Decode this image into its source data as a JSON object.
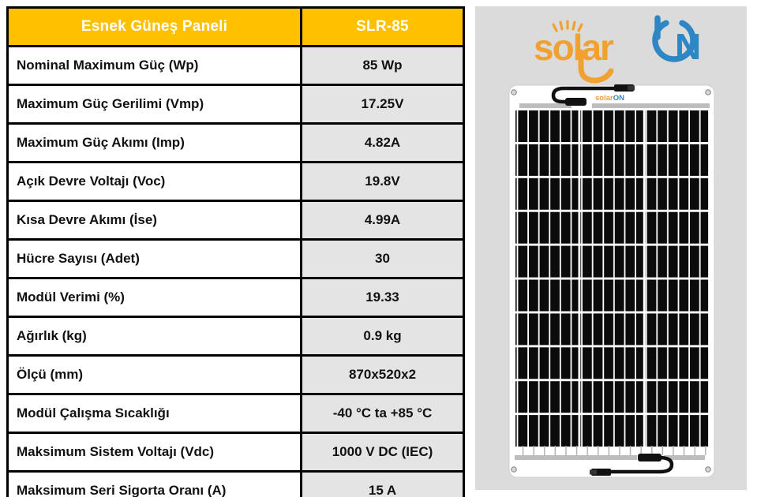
{
  "spec_table": {
    "header": {
      "product_type": "Esnek Güneş Paneli",
      "model": "SLR-85"
    },
    "rows": [
      {
        "label": "Nominal Maximum Güç (Wp)",
        "value": "85 Wp"
      },
      {
        "label": "Maximum Güç Gerilimi (Vmp)",
        "value": "17.25V"
      },
      {
        "label": "Maximum Güç Akımı (Imp)",
        "value": "4.82A"
      },
      {
        "label": "Açık Devre Voltajı (Voc)",
        "value": "19.8V"
      },
      {
        "label": "Kısa Devre Akımı (İse)",
        "value": "4.99A"
      },
      {
        "label": "Hücre Sayısı (Adet)",
        "value": "30"
      },
      {
        "label": "Modül Verimi (%)",
        "value": "19.33"
      },
      {
        "label": "Ağırlık (kg)",
        "value": "0.9 kg"
      },
      {
        "label": "Ölçü (mm)",
        "value": "870x520x2"
      },
      {
        "label": "Modül Çalışma Sıcaklığı",
        "value": "-40 °C ta +85 °C"
      },
      {
        "label": "Maksimum Sistem Voltajı (Vdc)",
        "value": "1000 V DC (IEC)"
      },
      {
        "label": "Maksimum Seri Sigorta Oranı (A)",
        "value": "15 A"
      }
    ],
    "colors": {
      "header_bg": "#FFC000",
      "header_text": "#FFFFFF",
      "value_bg": "#E5E4E4",
      "border": "#000000"
    }
  },
  "brand_logo": {
    "word_solar": "solar",
    "word_n": "N"
  },
  "product_image": {
    "mini_logo_solar": "solar",
    "mini_logo_on": "ON",
    "cell_grid": {
      "rows": 10,
      "columns": 3
    },
    "colors": {
      "box_bg": "#DBDBDB",
      "panel_bg": "#FFFFFF",
      "cell_black": "#0B0B0B",
      "rail_gray": "#BDBDBD",
      "logo_orange": "#F0A132",
      "logo_blue": "#2E86C5"
    }
  }
}
